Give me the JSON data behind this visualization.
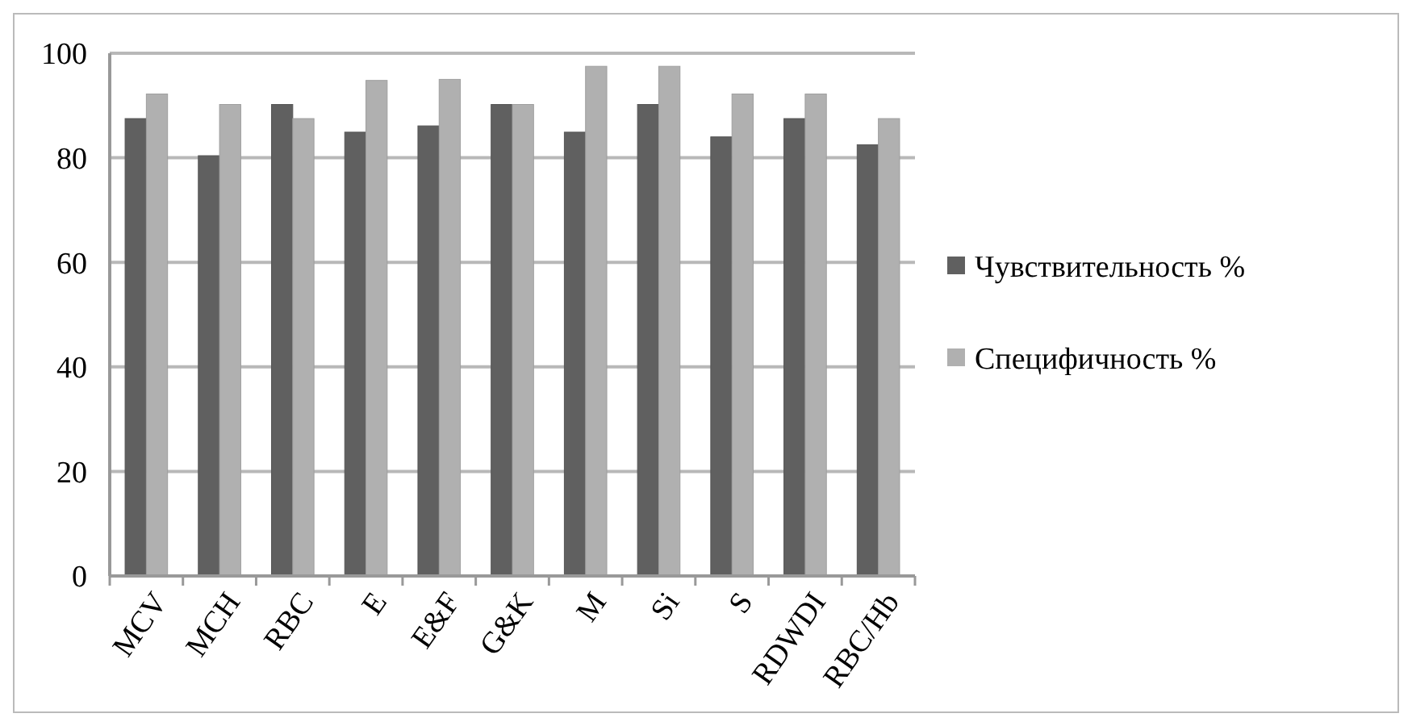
{
  "chart_data": {
    "type": "bar",
    "categories": [
      "MCV",
      "MCH",
      "RBC",
      "E",
      "E&F",
      "G&K",
      "M",
      "Si",
      "S",
      "RDWDI",
      "RBC/Hb"
    ],
    "series": [
      {
        "name": "Чувствительность %",
        "color": "#606060",
        "values": [
          87.5,
          80.4,
          90.2,
          84.9,
          86.1,
          90.2,
          84.9,
          90.2,
          84,
          87.5,
          82.5
        ]
      },
      {
        "name": "Специфичность %",
        "color": "#b0b0b0",
        "values": [
          92.2,
          90.2,
          87.5,
          94.8,
          95,
          90.2,
          97.5,
          97.5,
          92.2,
          92.2,
          87.5
        ]
      }
    ],
    "ylim": [
      0,
      100
    ],
    "yticks": [
      0,
      20,
      40,
      60,
      80,
      100
    ],
    "grid": "y",
    "legend": "right"
  }
}
